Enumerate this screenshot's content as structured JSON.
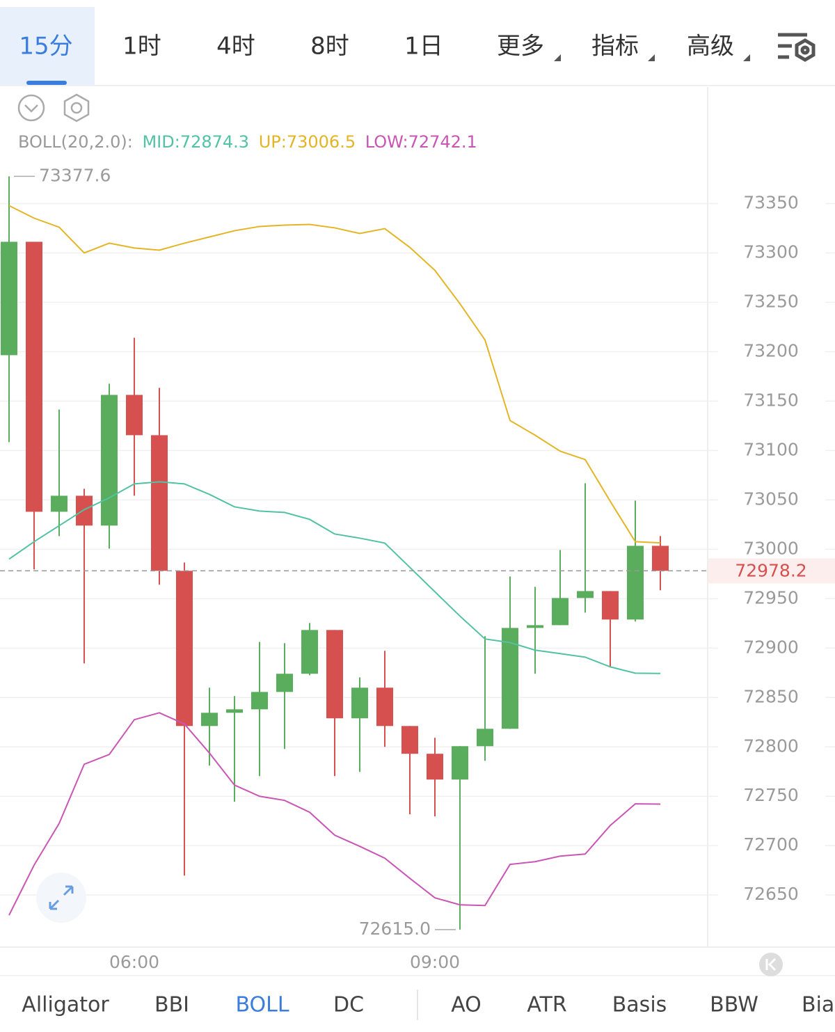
{
  "tabs": [
    "15分",
    "1时",
    "4时",
    "8时",
    "1日",
    "更多",
    "指标",
    "高级"
  ],
  "indicator_tabs": [
    "Alligator",
    "BBI",
    "BOLL",
    "DC",
    "AO",
    "ATR",
    "Basis",
    "BBW",
    "Bias"
  ],
  "chart_data": {
    "type": "candlestick",
    "indicator": "BOLL(20,2.0):",
    "categories": [
      null,
      null,
      null,
      null,
      null,
      "06:00",
      null,
      null,
      null,
      null,
      null,
      null,
      null,
      null,
      null,
      null,
      null,
      "09:00",
      null,
      null,
      null,
      null,
      null,
      null,
      null,
      null,
      null
    ],
    "open": [
      73196.5,
      73311.3,
      73038.0,
      73054.2,
      73024.0,
      73156.3,
      73115.5,
      72978.2,
      72821.1,
      72834.5,
      72838.0,
      72855.6,
      72874.0,
      72918.3,
      72828.9,
      72859.9,
      72821.1,
      72793.0,
      72766.9,
      72800.7,
      72818.3,
      72920.4,
      72923.2,
      72950.7,
      72957.7,
      72928.9,
      73003.5
    ],
    "high": [
      73377.6,
      73311.3,
      73141.5,
      73061.3,
      73167.6,
      73214.1,
      73163.4,
      72986.6,
      72859.9,
      72851.4,
      72906.3,
      72905.0,
      72925.4,
      72918.3,
      72870.4,
      72897.2,
      72821.1,
      72809.2,
      72800.7,
      72912.0,
      72972.5,
      72962.0,
      72999.3,
      73066.9,
      72957.7,
      73049.3,
      73013.4
    ],
    "low": [
      73108.5,
      72979.6,
      73013.4,
      72884.5,
      73000.7,
      73054.2,
      72964.1,
      72669.7,
      72781.0,
      72744.4,
      72770.4,
      72797.9,
      72872.5,
      72770.4,
      72774.6,
      72800.0,
      72731.7,
      72729.6,
      72615.0,
      72785.9,
      72818.3,
      72874.0,
      72923.2,
      72935.9,
      72881.0,
      72927.0,
      72958.5
    ],
    "close": [
      73311.3,
      73038.0,
      73054.2,
      73024.0,
      73156.3,
      73115.5,
      72978.2,
      72821.1,
      72834.5,
      72838.0,
      72855.6,
      72874.0,
      72918.3,
      72828.9,
      72859.9,
      72821.1,
      72793.0,
      72766.9,
      72800.7,
      72818.3,
      72920.4,
      72923.2,
      72950.7,
      72957.7,
      72928.9,
      73003.5,
      72978.2
    ],
    "up_color": "#5aad5d",
    "down_color": "#d5504f",
    "series": [
      {
        "name": "MID:",
        "color": "#52c2a3",
        "values": [
          72990.1,
          73007.7,
          73023.9,
          73040.1,
          73052.1,
          73066.2,
          73068.3,
          73066.2,
          73055.6,
          73043.0,
          73038.7,
          73037.3,
          73030.3,
          73015.5,
          73011.3,
          73006.3,
          72981.7,
          72957.0,
          72932.4,
          72909.2,
          72905.6,
          72897.9,
          72894.4,
          72890.8,
          72881.0,
          72874.6,
          72874.3
        ]
      },
      {
        "name": "UP:",
        "color": "#e3b526",
        "values": [
          73347.9,
          73335.2,
          73326.1,
          73300.0,
          73309.9,
          73305.0,
          73302.8,
          73309.9,
          73316.2,
          73322.5,
          73326.8,
          73328.2,
          73328.9,
          73325.4,
          73319.7,
          73324.6,
          73305.6,
          73282.4,
          73248.6,
          73212.0,
          73130.3,
          73115.5,
          73099.3,
          73090.8,
          73048.6,
          73007.7,
          73006.5
        ]
      },
      {
        "name": "LOW:",
        "color": "#c955b4",
        "values": [
          72629.6,
          72680.3,
          72722.5,
          72782.4,
          72792.3,
          72827.5,
          72834.5,
          72823.2,
          72793.7,
          72761.3,
          72750.0,
          72745.8,
          72733.8,
          72710.6,
          72699.3,
          72687.3,
          72666.9,
          72647.2,
          72640.1,
          72639.4,
          72681.0,
          72683.8,
          72689.4,
          72691.5,
          72720.4,
          72742.3,
          72742.1
        ]
      }
    ],
    "ylim": [
      72598,
      73468
    ],
    "yticks": [
      72650,
      72700,
      72750,
      72800,
      72850,
      72900,
      72950,
      73000,
      73050,
      73100,
      73150,
      73200,
      73250,
      73300,
      73350
    ],
    "grid": true,
    "last_price": 72978.2,
    "high_marker": 73377.6,
    "low_marker": {
      "value": 72615,
      "label": "72615.0"
    }
  }
}
